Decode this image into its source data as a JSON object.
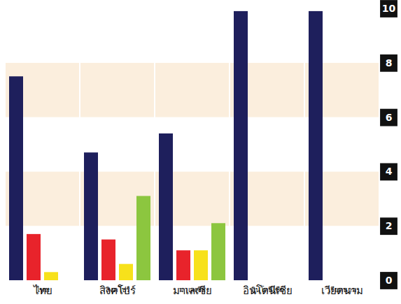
{
  "chart_data": {
    "type": "bar",
    "categories": [
      "ไทย",
      "สิงคโปร์",
      "มาเลเซีย",
      "อินโดนีเซีย",
      "เวียดนาม"
    ],
    "series": [
      {
        "color": "#1e1f5c",
        "values": [
          7.5,
          4.7,
          5.4,
          9.9,
          9.9
        ]
      },
      {
        "color": "#e8232b",
        "values": [
          1.7,
          1.5,
          1.1,
          null,
          null
        ]
      },
      {
        "color": "#f7e11b",
        "values": [
          0.3,
          0.6,
          1.1,
          null,
          null
        ]
      },
      {
        "color": "#8cc63f",
        "values": [
          null,
          3.1,
          2.1,
          null,
          null
        ]
      }
    ],
    "ylim": [
      0,
      10
    ],
    "yticks": [
      0,
      2,
      4,
      6,
      8,
      10
    ],
    "grid": true
  }
}
